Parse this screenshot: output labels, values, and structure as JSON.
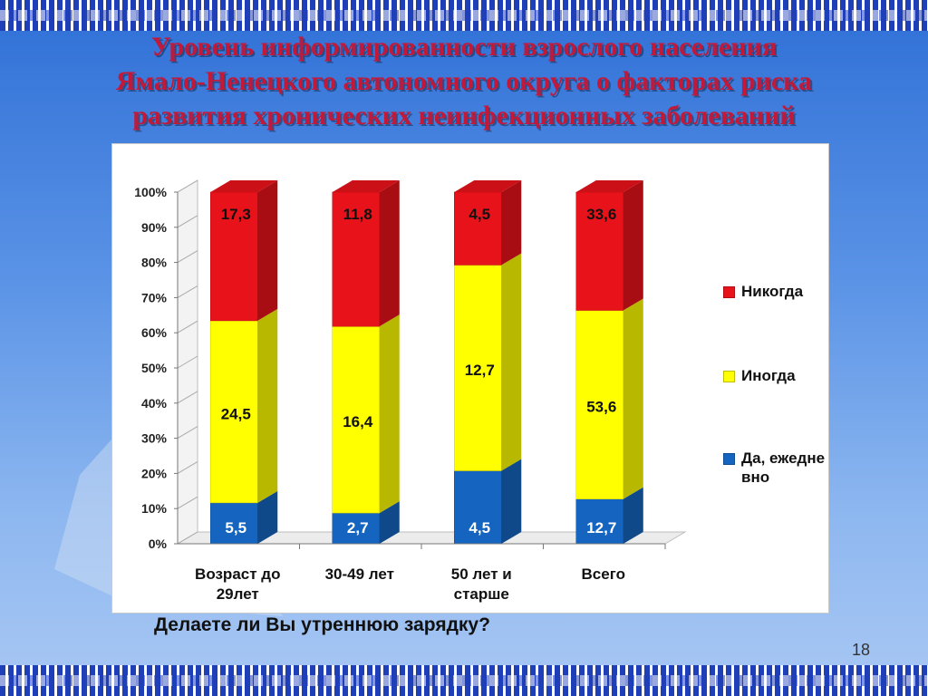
{
  "slide": {
    "title_lines": [
      "Уровень информированности взрослого населения",
      "Ямало-Ненецкого автономного округа  о  факторах риска",
      "развития хронических неинфекционных заболеваний"
    ],
    "question": "Делаете ли Вы утреннюю зарядку?",
    "page_number": "18"
  },
  "chart_data": {
    "type": "bar",
    "stacked": "percent",
    "categories": [
      "Возраст до 29лет",
      "30-49 лет",
      "50 лет и старше",
      "Всего"
    ],
    "y_ticks": [
      "0%",
      "10%",
      "20%",
      "30%",
      "40%",
      "50%",
      "60%",
      "70%",
      "80%",
      "90%",
      "100%"
    ],
    "ylim": [
      0,
      100
    ],
    "series": [
      {
        "name": "Да, ежедневно",
        "color": "#1565c0",
        "values": [
          5.5,
          2.7,
          4.5,
          12.7
        ],
        "labels": [
          "5,5",
          "2,7",
          "4,5",
          "12,7"
        ]
      },
      {
        "name": "Иногда",
        "color": "#ffff00",
        "values": [
          24.5,
          16.4,
          12.7,
          53.6
        ],
        "labels": [
          "24,5",
          "16,4",
          "12,7",
          "53,6"
        ]
      },
      {
        "name": "Никогда",
        "color": "#e8121a",
        "values": [
          17.3,
          11.8,
          4.5,
          33.6
        ],
        "labels": [
          "17,3",
          "11,8",
          "4,5",
          "33,6"
        ]
      }
    ],
    "legend": [
      {
        "label": "Никогда",
        "color": "#e8121a"
      },
      {
        "label": "Иногда",
        "color": "#ffff00"
      },
      {
        "label": "Да, ежедневно",
        "color": "#1565c0"
      }
    ],
    "legend_position": "right",
    "grid": false
  }
}
